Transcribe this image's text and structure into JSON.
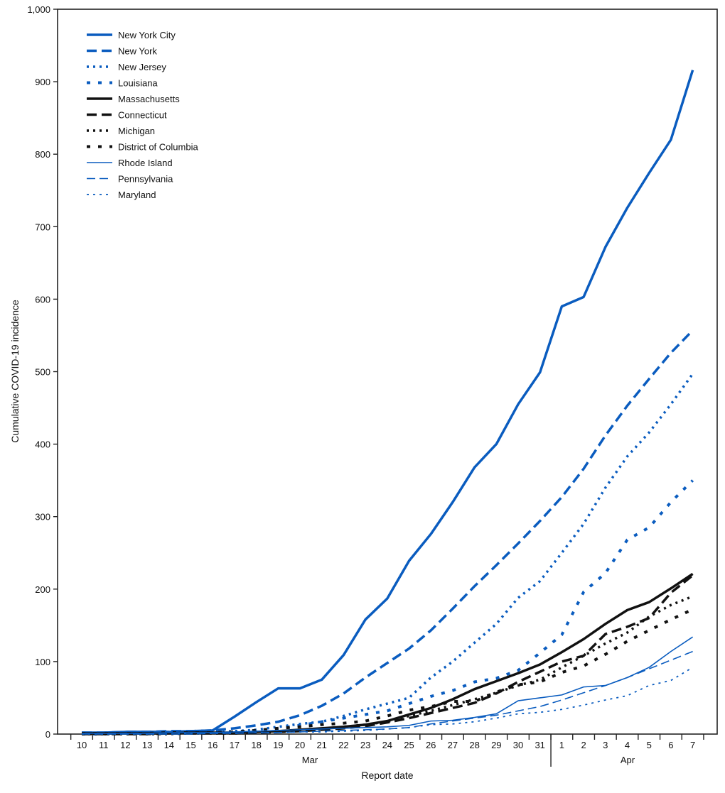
{
  "chart_data": {
    "type": "line",
    "xlabel": "Report date",
    "ylabel": "Cumulative COVID-19 incidence",
    "ylim": [
      0,
      1000
    ],
    "yticks": [
      "0",
      "100",
      "200",
      "300",
      "400",
      "500",
      "600",
      "700",
      "800",
      "900",
      "1,000"
    ],
    "x": [
      "10",
      "11",
      "12",
      "13",
      "14",
      "15",
      "16",
      "17",
      "18",
      "19",
      "20",
      "21",
      "22",
      "23",
      "24",
      "25",
      "26",
      "27",
      "28",
      "29",
      "30",
      "31",
      "1",
      "2",
      "3",
      "4",
      "5",
      "6",
      "7"
    ],
    "month_labels": [
      "Mar",
      "Apr"
    ],
    "grid": false,
    "legend_position": "top-left",
    "series": [
      {
        "name": "New York City",
        "color": "#0a5cbf",
        "style": "solid-thick",
        "values": [
          2,
          2,
          3,
          3,
          3,
          4,
          5,
          24,
          44,
          63,
          63,
          75,
          109,
          158,
          187,
          239,
          276,
          320,
          368,
          400,
          455,
          499,
          590,
          603,
          672,
          726,
          774,
          820,
          916
        ]
      },
      {
        "name": "New York",
        "color": "#0a5cbf",
        "style": "dashed-thick",
        "values": [
          2,
          2,
          3,
          3,
          4,
          4,
          5,
          8,
          12,
          17,
          26,
          39,
          56,
          78,
          98,
          118,
          143,
          173,
          204,
          233,
          263,
          294,
          327,
          366,
          412,
          453,
          490,
          526,
          557
        ]
      },
      {
        "name": "New Jersey",
        "color": "#0a5cbf",
        "style": "dotted-thick",
        "values": [
          1,
          1,
          2,
          2,
          2,
          3,
          3,
          4,
          6,
          10,
          14,
          17,
          25,
          34,
          42,
          50,
          78,
          100,
          126,
          152,
          188,
          211,
          250,
          290,
          340,
          383,
          416,
          455,
          497
        ]
      },
      {
        "name": "Louisiana",
        "color": "#0a5cbf",
        "style": "spaced-dots-thick",
        "values": [
          0,
          0,
          1,
          1,
          1,
          2,
          2,
          3,
          5,
          8,
          12,
          17,
          22,
          27,
          32,
          42,
          52,
          60,
          72,
          77,
          88,
          112,
          137,
          196,
          222,
          268,
          285,
          320,
          350
        ]
      },
      {
        "name": "Massachusetts",
        "color": "#111111",
        "style": "solid-thick",
        "values": [
          1,
          1,
          1,
          1,
          1,
          2,
          2,
          2,
          3,
          4,
          6,
          8,
          10,
          13,
          18,
          27,
          36,
          48,
          62,
          73,
          84,
          96,
          113,
          131,
          152,
          171,
          182,
          201,
          221
        ]
      },
      {
        "name": "Connecticut",
        "color": "#111111",
        "style": "dashed-thick",
        "values": [
          0,
          0,
          0,
          0,
          1,
          1,
          1,
          1,
          2,
          3,
          4,
          6,
          8,
          11,
          16,
          22,
          29,
          36,
          43,
          56,
          72,
          86,
          100,
          108,
          138,
          148,
          160,
          195,
          219
        ]
      },
      {
        "name": "Michigan",
        "color": "#111111",
        "style": "dotted-thick",
        "values": [
          0,
          0,
          0,
          0,
          0,
          1,
          1,
          1,
          2,
          4,
          5,
          7,
          10,
          13,
          17,
          25,
          32,
          40,
          48,
          57,
          67,
          75,
          92,
          108,
          125,
          140,
          162,
          178,
          190
        ]
      },
      {
        "name": "District of Columbia",
        "color": "#111111",
        "style": "spaced-dots-thick",
        "values": [
          1,
          1,
          1,
          1,
          2,
          2,
          2,
          3,
          5,
          8,
          10,
          13,
          15,
          18,
          25,
          33,
          38,
          45,
          45,
          58,
          68,
          72,
          85,
          94,
          110,
          128,
          143,
          158,
          172
        ]
      },
      {
        "name": "Rhode Island",
        "color": "#0a5cbf",
        "style": "solid-thin",
        "values": [
          1,
          1,
          1,
          1,
          2,
          2,
          2,
          3,
          4,
          5,
          6,
          7,
          8,
          9,
          10,
          12,
          18,
          19,
          23,
          28,
          46,
          50,
          54,
          65,
          67,
          78,
          92,
          114,
          134
        ]
      },
      {
        "name": "Pennsylvania",
        "color": "#0a5cbf",
        "style": "dashed-thin",
        "values": [
          0,
          0,
          0,
          0,
          0,
          0,
          1,
          1,
          2,
          2,
          3,
          4,
          5,
          6,
          7,
          9,
          14,
          18,
          22,
          26,
          32,
          38,
          47,
          57,
          67,
          78,
          90,
          102,
          114
        ]
      },
      {
        "name": "Maryland",
        "color": "#0a5cbf",
        "style": "dotted-thin",
        "values": [
          0,
          0,
          0,
          0,
          0,
          1,
          1,
          1,
          2,
          2,
          3,
          3,
          4,
          5,
          7,
          9,
          13,
          14,
          17,
          22,
          28,
          30,
          34,
          40,
          47,
          53,
          67,
          74,
          92
        ]
      }
    ]
  }
}
